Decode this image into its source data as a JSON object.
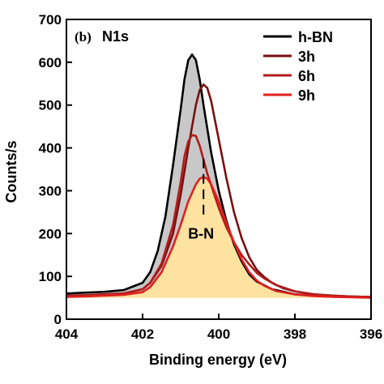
{
  "chart_data": {
    "type": "line",
    "panel_tag": "(b)",
    "panel_name": "N1s",
    "xlabel": "Binding energy (eV)",
    "ylabel": "Counts/s",
    "xlim": [
      404,
      396
    ],
    "ylim": [
      0,
      700
    ],
    "xticks": [
      404,
      402,
      400,
      398,
      396
    ],
    "yticks": [
      0,
      100,
      200,
      300,
      400,
      500,
      600,
      700
    ],
    "grid": false,
    "legend_position": "top-right",
    "series": [
      {
        "name": "h-BN",
        "color": "#000000",
        "fill": "#c8c8c8",
        "x": [
          404,
          403.5,
          403,
          402.5,
          402,
          401.8,
          401.6,
          401.4,
          401.2,
          401.0,
          400.9,
          400.8,
          400.7,
          400.6,
          400.5,
          400.4,
          400.2,
          400.0,
          399.8,
          399.6,
          399.4,
          399.2,
          399.0,
          398.6,
          398.0,
          397.5,
          397,
          396.5,
          396
        ],
        "values": [
          60,
          62,
          64,
          68,
          85,
          110,
          160,
          240,
          360,
          490,
          560,
          605,
          618,
          605,
          560,
          500,
          390,
          300,
          230,
          175,
          135,
          105,
          88,
          70,
          58,
          55,
          54,
          53,
          52
        ]
      },
      {
        "name": "3h",
        "color": "#7a1010",
        "fill": "none",
        "x": [
          404,
          403.5,
          403,
          402.5,
          402,
          401.8,
          401.5,
          401.2,
          401.0,
          400.8,
          400.6,
          400.5,
          400.4,
          400.3,
          400.2,
          400.0,
          399.8,
          399.6,
          399.4,
          399.2,
          399.0,
          398.8,
          398.6,
          398.3,
          398.0,
          397.5,
          397,
          396.5,
          396
        ],
        "values": [
          55,
          56,
          58,
          60,
          70,
          85,
          125,
          200,
          290,
          400,
          500,
          535,
          548,
          540,
          510,
          420,
          330,
          250,
          190,
          145,
          115,
          98,
          85,
          72,
          65,
          58,
          55,
          53,
          52
        ]
      },
      {
        "name": "6h",
        "color": "#b01c1c",
        "fill": "none",
        "x": [
          404,
          403.5,
          403,
          402.5,
          402,
          401.8,
          401.5,
          401.2,
          401.0,
          400.9,
          400.8,
          400.7,
          400.6,
          400.5,
          400.3,
          400.0,
          399.8,
          399.6,
          399.4,
          399.2,
          399.0,
          398.8,
          398.5,
          398.0,
          397.5,
          397,
          396.5,
          396
        ],
        "values": [
          55,
          56,
          58,
          60,
          70,
          85,
          130,
          220,
          320,
          380,
          415,
          430,
          428,
          405,
          340,
          260,
          215,
          180,
          150,
          128,
          108,
          95,
          80,
          65,
          58,
          55,
          53,
          52
        ]
      },
      {
        "name": "9h",
        "color": "#e02020",
        "fill": "#fde2a0",
        "x": [
          404,
          403.5,
          403,
          402.5,
          402,
          401.8,
          401.5,
          401.2,
          401.0,
          400.8,
          400.6,
          400.5,
          400.4,
          400.3,
          400.2,
          400.0,
          399.8,
          399.6,
          399.4,
          399.2,
          399.0,
          398.8,
          398.5,
          398.0,
          397.5,
          397,
          396.5,
          396
        ],
        "values": [
          52,
          53,
          55,
          57,
          63,
          75,
          110,
          170,
          220,
          275,
          315,
          328,
          332,
          328,
          315,
          275,
          225,
          180,
          140,
          110,
          90,
          78,
          66,
          58,
          54,
          52,
          51,
          50
        ]
      }
    ],
    "annotations": [
      {
        "text": "B-N",
        "x": 400.4,
        "line_from": 375,
        "line_to": 240,
        "label_y": 200
      }
    ]
  }
}
